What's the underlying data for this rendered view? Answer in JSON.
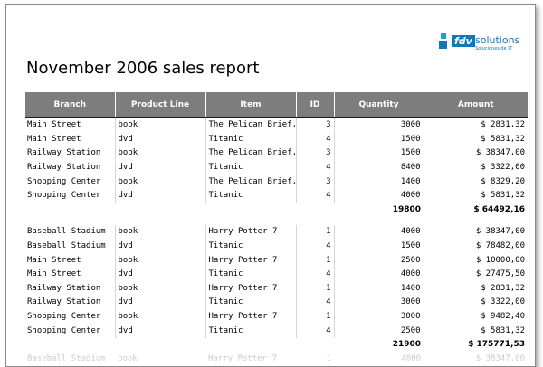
{
  "logo": {
    "mark": "fdv",
    "word": "solutions",
    "tagline": "Soluciones de IT",
    "color": "#1576b8"
  },
  "report": {
    "title": "November 2006 sales report",
    "columns": [
      "Branch",
      "Product Line",
      "Item",
      "ID",
      "Quantity",
      "Amount"
    ],
    "groups": [
      {
        "rows": [
          [
            "Main Street",
            "book",
            "The Pelican Brief,",
            "3",
            "3000",
            "$ 2831,32"
          ],
          [
            "Main Street",
            "dvd",
            "Titanic",
            "4",
            "1500",
            "$ 5831,32"
          ],
          [
            "Railway Station",
            "book",
            "The Pelican Brief,",
            "3",
            "1500",
            "$ 38347,00"
          ],
          [
            "Railway Station",
            "dvd",
            "Titanic",
            "4",
            "8400",
            "$ 3322,00"
          ],
          [
            "Shopping Center",
            "book",
            "The Pelican Brief,",
            "3",
            "1400",
            "$ 8329,20"
          ],
          [
            "Shopping Center",
            "dvd",
            "Titanic",
            "4",
            "4000",
            "$ 5831,32"
          ]
        ],
        "total_quantity": "19800",
        "total_amount": "$ 64492,16"
      },
      {
        "rows": [
          [
            "Baseball Stadium",
            "book",
            "Harry Potter 7",
            "1",
            "4000",
            "$ 38347,00"
          ],
          [
            "Baseball Stadium",
            "dvd",
            "Titanic",
            "4",
            "1500",
            "$ 78482,00"
          ],
          [
            "Main Street",
            "book",
            "Harry Potter 7",
            "1",
            "2500",
            "$ 10000,00"
          ],
          [
            "Main Street",
            "dvd",
            "Titanic",
            "4",
            "4000",
            "$ 27475,50"
          ],
          [
            "Railway Station",
            "book",
            "Harry Potter 7",
            "1",
            "1400",
            "$ 2831,32"
          ],
          [
            "Railway Station",
            "dvd",
            "Titanic",
            "4",
            "3000",
            "$ 3322,00"
          ],
          [
            "Shopping Center",
            "book",
            "Harry Potter 7",
            "1",
            "3000",
            "$ 9482,40"
          ],
          [
            "Shopping Center",
            "dvd",
            "Titanic",
            "4",
            "2500",
            "$ 5831,32"
          ]
        ],
        "total_quantity": "21900",
        "total_amount": "$ 175771,53"
      }
    ],
    "partial_row": [
      "Baseball Stadium",
      "book",
      "Harry Potter 7",
      "1",
      "4000",
      "$ 38347,00"
    ]
  }
}
